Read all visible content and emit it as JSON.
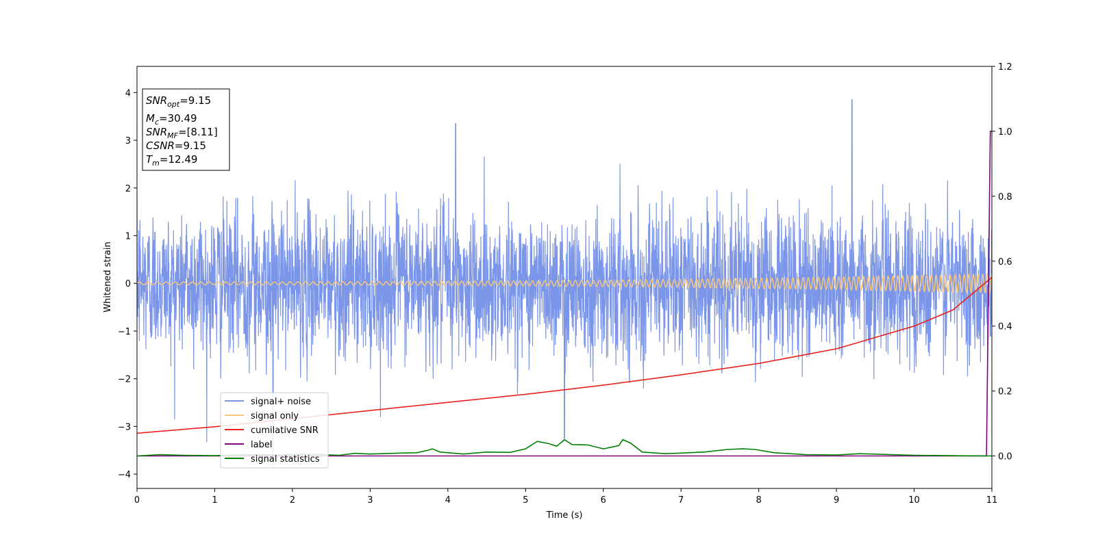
{
  "chart_data": {
    "type": "line",
    "xlabel": "Time (s)",
    "ylabel": "Whitened strain",
    "xlim": [
      0,
      11
    ],
    "ylim_left": [
      -4.3,
      4.55
    ],
    "ylim_right": [
      -0.1,
      1.2
    ],
    "x_ticks": [
      0,
      1,
      2,
      3,
      4,
      5,
      6,
      7,
      8,
      9,
      10,
      11
    ],
    "y_ticks_left": [
      -4,
      -3,
      -2,
      -1,
      0,
      1,
      2,
      3,
      4
    ],
    "y_ticks_right": [
      0.0,
      0.2,
      0.4,
      0.6,
      0.8,
      1.0,
      1.2
    ],
    "x_tick_labels": [
      "0",
      "1",
      "2",
      "3",
      "4",
      "5",
      "6",
      "7",
      "8",
      "9",
      "10",
      "11"
    ],
    "y_tick_labels_left": [
      "−4",
      "−3",
      "−2",
      "−1",
      "0",
      "1",
      "2",
      "3",
      "4"
    ],
    "y_tick_labels_right": [
      "0.0",
      "0.2",
      "0.4",
      "0.6",
      "0.8",
      "1.0",
      "1.2"
    ],
    "grid": false,
    "legend_position": "lower-left",
    "series": [
      {
        "name": "signal+ noise",
        "axis": "left",
        "color": "#7b95e8",
        "description_values": "noisy whitened strain, roughly within -2.4 to 2.4 with spikes",
        "approx_range": [
          -3.85,
          3.85
        ],
        "peaks": [
          {
            "x": 1.75,
            "y": -3.85
          },
          {
            "x": 4.1,
            "y": 3.35
          },
          {
            "x": 9.2,
            "y": 3.85
          },
          {
            "x": 5.5,
            "y": -3.25
          }
        ]
      },
      {
        "name": "signal only",
        "axis": "left",
        "color": "#f5c77e",
        "chirp": {
          "f0_hz": 8.5,
          "f1_hz": 17,
          "amp_start": 0.03,
          "amp_end": 0.2,
          "t_end": 11
        }
      },
      {
        "name": "cumilative SNR",
        "axis": "right",
        "color": "#e8211c",
        "x": [
          0,
          1,
          2,
          3,
          4,
          5,
          6,
          7,
          8,
          9,
          10,
          10.5,
          11
        ],
        "y": [
          0.07,
          0.09,
          0.115,
          0.14,
          0.165,
          0.19,
          0.218,
          0.25,
          0.285,
          0.33,
          0.4,
          0.45,
          0.55
        ]
      },
      {
        "name": "label",
        "axis": "right",
        "color": "#800080",
        "x": [
          0,
          10.93,
          10.98,
          11
        ],
        "y": [
          0,
          0,
          1.0,
          1.0
        ]
      },
      {
        "name": "signal statistics",
        "axis": "right",
        "color": "#008000",
        "x": [
          0,
          0.3,
          0.6,
          1.0,
          1.4,
          1.8,
          2.2,
          2.6,
          2.8,
          3.0,
          3.4,
          3.6,
          3.75,
          3.8,
          3.9,
          4.2,
          4.5,
          4.8,
          5.0,
          5.15,
          5.3,
          5.4,
          5.5,
          5.6,
          5.8,
          6.0,
          6.2,
          6.25,
          6.35,
          6.5,
          6.8,
          7.0,
          7.3,
          7.6,
          7.8,
          7.95,
          8.2,
          8.6,
          9.0,
          9.3,
          9.6,
          10.0,
          10.5,
          11.0
        ],
        "y": [
          0.0,
          0.004,
          0.002,
          0.001,
          0.004,
          0.003,
          0.006,
          0.002,
          0.008,
          0.006,
          0.009,
          0.01,
          0.018,
          0.022,
          0.012,
          0.006,
          0.012,
          0.011,
          0.022,
          0.045,
          0.038,
          0.03,
          0.05,
          0.035,
          0.034,
          0.022,
          0.032,
          0.05,
          0.04,
          0.012,
          0.007,
          0.009,
          0.012,
          0.02,
          0.022,
          0.02,
          0.01,
          0.004,
          0.003,
          0.007,
          0.005,
          0.002,
          0.001,
          0.0
        ]
      }
    ],
    "annotation": {
      "lines": [
        {
          "base": "SNR",
          "sub": "opt",
          "rest": "=9.15"
        },
        {
          "base": "M",
          "sub": "c",
          "rest": "=30.49"
        },
        {
          "base": "SNR",
          "sub": "MF",
          "rest": "=[8.11]"
        },
        {
          "base": "CSNR",
          "sub": "",
          "rest": "=9.15"
        },
        {
          "base": "T",
          "sub": "m",
          "rest": "=12.49"
        }
      ]
    }
  }
}
